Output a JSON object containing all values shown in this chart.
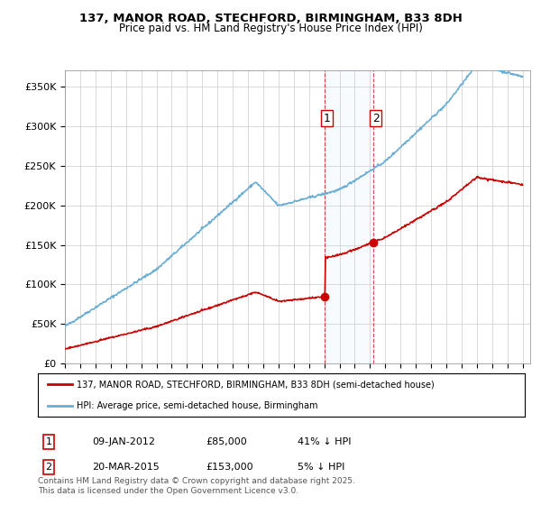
{
  "title_line1": "137, MANOR ROAD, STECHFORD, BIRMINGHAM, B33 8DH",
  "title_line2": "Price paid vs. HM Land Registry's House Price Index (HPI)",
  "xlabel": "",
  "ylabel": "",
  "ylim": [
    0,
    370000
  ],
  "yticks": [
    0,
    50000,
    100000,
    150000,
    200000,
    250000,
    300000,
    350000
  ],
  "ytick_labels": [
    "£0",
    "£50K",
    "£100K",
    "£150K",
    "£200K",
    "£250K",
    "£300K",
    "£350K"
  ],
  "hpi_color": "#6aaed6",
  "price_color": "#cc0000",
  "transaction1_date": "2012-01-09",
  "transaction1_price": 85000,
  "transaction1_label": "1",
  "transaction1_x": 2012.03,
  "transaction2_date": "2015-03-20",
  "transaction2_price": 153000,
  "transaction2_label": "2",
  "transaction2_x": 2015.22,
  "legend_line1": "137, MANOR ROAD, STECHFORD, BIRMINGHAM, B33 8DH (semi-detached house)",
  "legend_line2": "HPI: Average price, semi-detached house, Birmingham",
  "footnote": "Contains HM Land Registry data © Crown copyright and database right 2025.\nThis data is licensed under the Open Government Licence v3.0.",
  "table_row1_num": "1",
  "table_row1_date": "09-JAN-2012",
  "table_row1_price": "£85,000",
  "table_row1_hpi": "41% ↓ HPI",
  "table_row2_num": "2",
  "table_row2_date": "20-MAR-2015",
  "table_row2_price": "£153,000",
  "table_row2_hpi": "5% ↓ HPI",
  "background_color": "#ffffff",
  "grid_color": "#cccccc"
}
